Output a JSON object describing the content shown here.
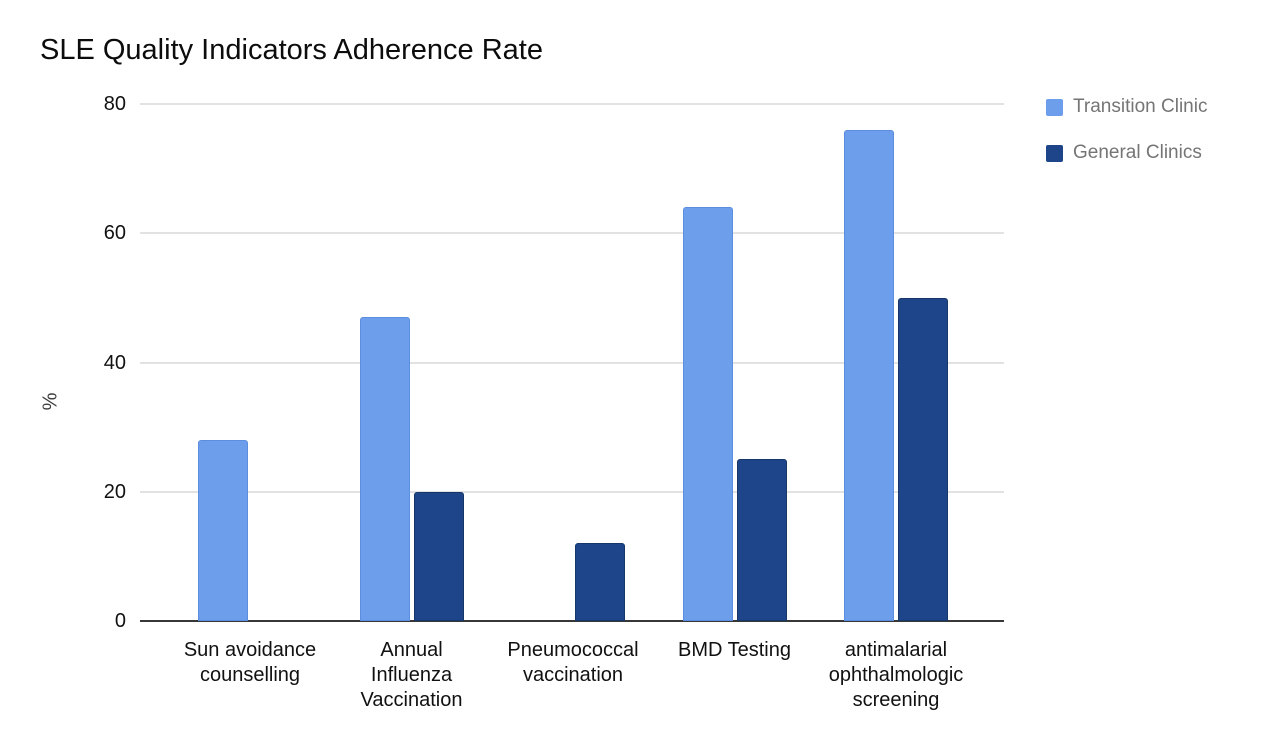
{
  "chart_data": {
    "type": "bar",
    "title": "SLE Quality Indicators Adherence Rate",
    "ylabel": "%",
    "xlabel": "",
    "ylim": [
      0,
      80
    ],
    "yticks": [
      0,
      20,
      40,
      60,
      80
    ],
    "grid": true,
    "legend_position": "top-right",
    "categories": [
      "Sun avoidance counselling",
      "Annual Influenza Vaccination",
      "Pneumococcal vaccination",
      "BMD Testing",
      "antimalarial ophthalmologic screening"
    ],
    "category_lines": [
      [
        "Sun avoidance",
        "counselling"
      ],
      [
        "Annual",
        "Influenza",
        "Vaccination"
      ],
      [
        "Pneumococcal",
        "vaccination"
      ],
      [
        "BMD Testing"
      ],
      [
        "antimalarial",
        "ophthalmologic",
        "screening"
      ]
    ],
    "series": [
      {
        "name": "Transition Clinic",
        "color": "#6d9eeb",
        "values": [
          28,
          47,
          0,
          64,
          76
        ]
      },
      {
        "name": "General Clinics",
        "color": "#1e4489",
        "values": [
          0,
          20,
          12,
          25,
          50
        ]
      }
    ],
    "colors": {
      "series_light": "#6d9eeb",
      "series_dark": "#1e4489",
      "gridline": "#e2e2e2",
      "axis_line": "#373737",
      "tick_text": "#111111",
      "legend_text": "#757575",
      "title_text": "#0c0c0c",
      "background": "#ffffff"
    }
  }
}
